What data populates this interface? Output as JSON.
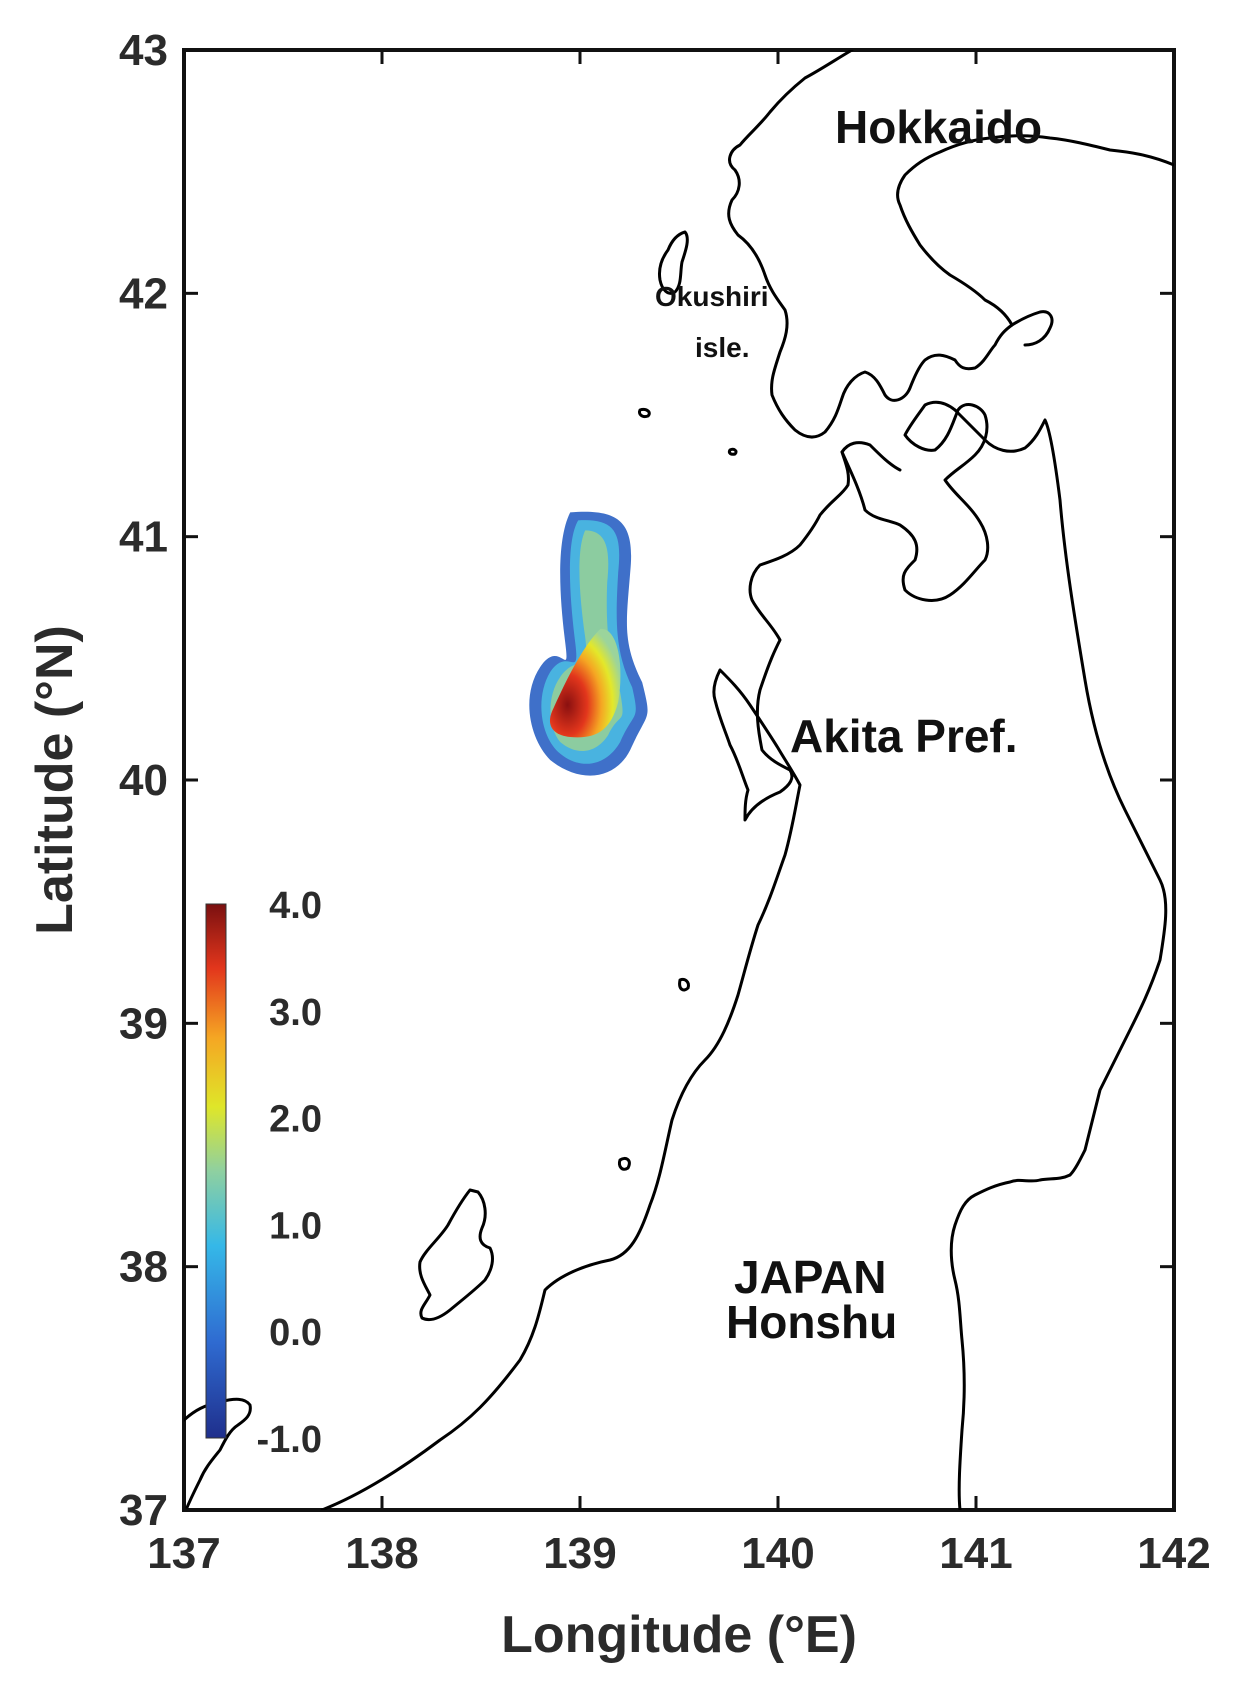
{
  "chart_data": {
    "type": "heatmap",
    "x_axis": {
      "label": "Longitude (°E)",
      "range": [
        137,
        142
      ],
      "ticks": [
        "137",
        "138",
        "139",
        "140",
        "141",
        "142"
      ]
    },
    "y_axis": {
      "label": "Latitude (°N)",
      "range": [
        37,
        43
      ],
      "ticks": [
        "37",
        "38",
        "39",
        "40",
        "41",
        "42",
        "43"
      ]
    },
    "colorbar": {
      "range": [
        -1.0,
        4.0
      ],
      "ticks": [
        "-1.0",
        "0.0",
        "1.0",
        "2.0",
        "3.0",
        "4.0"
      ],
      "colors": [
        "#1f2f8c",
        "#2f6bd1",
        "#35b8e8",
        "#8fd0a0",
        "#dfe629",
        "#f5a623",
        "#e2361c",
        "#7a1010"
      ]
    },
    "labels": {
      "hokkaido": "Hokkaido",
      "okushiri_1": "Okushiri",
      "okushiri_2": "isle.",
      "akita": "Akita Pref.",
      "japan": "JAPAN",
      "honshu": "Honshu"
    },
    "anomaly": {
      "description_free": true,
      "north_lat": 41.1,
      "south_lat": 40.0,
      "peak_lon": 138.9,
      "peak_lat": 40.3,
      "peak_value": 4.0
    },
    "grid": false
  }
}
